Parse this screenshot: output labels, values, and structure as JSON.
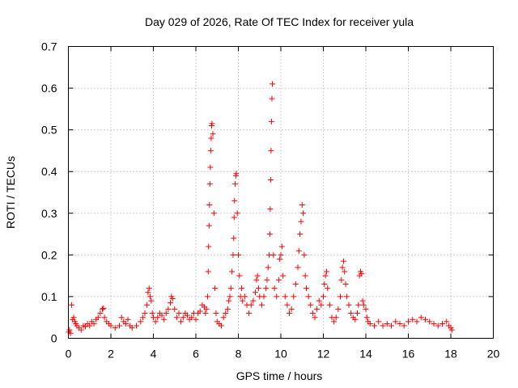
{
  "chart_data": {
    "type": "scatter",
    "title": "Day 029 of 2026, Rate Of TEC Index for receiver yula",
    "xlabel": "GPS time / hours",
    "ylabel": "ROTI / TECUs",
    "xlim": [
      0,
      20
    ],
    "ylim": [
      0,
      0.7
    ],
    "xticks": [
      0,
      2,
      4,
      6,
      8,
      10,
      12,
      14,
      16,
      18,
      20
    ],
    "xtick_labels": [
      "0",
      "2",
      "4",
      "6",
      "8",
      "10",
      "12",
      "14",
      "16",
      "18",
      "20"
    ],
    "yticks": [
      0,
      0.1,
      0.2,
      0.3,
      0.4,
      0.5,
      0.6,
      0.7
    ],
    "ytick_labels": [
      "0",
      "0.1",
      "0.2",
      "0.3",
      "0.4",
      "0.5",
      "0.6",
      "0.7"
    ],
    "grid": true,
    "marker": "+",
    "color": "#ff0000",
    "series": [
      {
        "name": "ROTI",
        "points": [
          [
            0.02,
            0.015
          ],
          [
            0.05,
            0.02
          ],
          [
            0.1,
            0.012
          ],
          [
            0.15,
            0.08
          ],
          [
            0.2,
            0.045
          ],
          [
            0.25,
            0.05
          ],
          [
            0.3,
            0.04
          ],
          [
            0.35,
            0.035
          ],
          [
            0.4,
            0.03
          ],
          [
            0.5,
            0.025
          ],
          [
            0.6,
            0.02
          ],
          [
            0.7,
            0.03
          ],
          [
            0.8,
            0.028
          ],
          [
            0.9,
            0.035
          ],
          [
            1.0,
            0.03
          ],
          [
            1.1,
            0.04
          ],
          [
            1.2,
            0.035
          ],
          [
            1.3,
            0.045
          ],
          [
            1.4,
            0.05
          ],
          [
            1.5,
            0.06
          ],
          [
            1.6,
            0.07
          ],
          [
            1.65,
            0.072
          ],
          [
            1.7,
            0.05
          ],
          [
            1.8,
            0.04
          ],
          [
            1.9,
            0.035
          ],
          [
            2.0,
            0.03
          ],
          [
            2.2,
            0.025
          ],
          [
            2.4,
            0.03
          ],
          [
            2.5,
            0.05
          ],
          [
            2.6,
            0.04
          ],
          [
            2.7,
            0.035
          ],
          [
            2.8,
            0.045
          ],
          [
            2.9,
            0.03
          ],
          [
            3.0,
            0.025
          ],
          [
            3.2,
            0.03
          ],
          [
            3.4,
            0.04
          ],
          [
            3.5,
            0.05
          ],
          [
            3.6,
            0.06
          ],
          [
            3.7,
            0.08
          ],
          [
            3.75,
            0.11
          ],
          [
            3.8,
            0.12
          ],
          [
            3.85,
            0.1
          ],
          [
            3.9,
            0.09
          ],
          [
            3.95,
            0.06
          ],
          [
            4.0,
            0.05
          ],
          [
            4.1,
            0.04
          ],
          [
            4.2,
            0.05
          ],
          [
            4.3,
            0.06
          ],
          [
            4.4,
            0.055
          ],
          [
            4.5,
            0.045
          ],
          [
            4.6,
            0.06
          ],
          [
            4.7,
            0.07
          ],
          [
            4.8,
            0.085
          ],
          [
            4.85,
            0.1
          ],
          [
            4.9,
            0.095
          ],
          [
            5.0,
            0.07
          ],
          [
            5.1,
            0.05
          ],
          [
            5.2,
            0.06
          ],
          [
            5.3,
            0.04
          ],
          [
            5.4,
            0.05
          ],
          [
            5.5,
            0.06
          ],
          [
            5.6,
            0.055
          ],
          [
            5.7,
            0.045
          ],
          [
            5.8,
            0.05
          ],
          [
            5.9,
            0.06
          ],
          [
            6.0,
            0.045
          ],
          [
            6.1,
            0.06
          ],
          [
            6.2,
            0.065
          ],
          [
            6.3,
            0.08
          ],
          [
            6.4,
            0.075
          ],
          [
            6.45,
            0.06
          ],
          [
            6.5,
            0.07
          ],
          [
            6.55,
            0.1
          ],
          [
            6.58,
            0.16
          ],
          [
            6.6,
            0.22
          ],
          [
            6.62,
            0.27
          ],
          [
            6.64,
            0.32
          ],
          [
            6.66,
            0.37
          ],
          [
            6.68,
            0.41
          ],
          [
            6.7,
            0.45
          ],
          [
            6.72,
            0.48
          ],
          [
            6.74,
            0.51
          ],
          [
            6.76,
            0.515
          ],
          [
            6.8,
            0.49
          ],
          [
            6.85,
            0.3
          ],
          [
            6.9,
            0.12
          ],
          [
            6.95,
            0.06
          ],
          [
            7.0,
            0.04
          ],
          [
            7.1,
            0.035
          ],
          [
            7.2,
            0.03
          ],
          [
            7.3,
            0.05
          ],
          [
            7.4,
            0.06
          ],
          [
            7.5,
            0.07
          ],
          [
            7.55,
            0.09
          ],
          [
            7.6,
            0.1
          ],
          [
            7.65,
            0.12
          ],
          [
            7.7,
            0.16
          ],
          [
            7.75,
            0.2
          ],
          [
            7.78,
            0.24
          ],
          [
            7.8,
            0.29
          ],
          [
            7.82,
            0.33
          ],
          [
            7.85,
            0.37
          ],
          [
            7.88,
            0.39
          ],
          [
            7.9,
            0.395
          ],
          [
            7.95,
            0.3
          ],
          [
            8.0,
            0.2
          ],
          [
            8.05,
            0.15
          ],
          [
            8.1,
            0.1
          ],
          [
            8.15,
            0.12
          ],
          [
            8.2,
            0.09
          ],
          [
            8.3,
            0.1
          ],
          [
            8.4,
            0.08
          ],
          [
            8.5,
            0.06
          ],
          [
            8.6,
            0.08
          ],
          [
            8.7,
            0.09
          ],
          [
            8.8,
            0.11
          ],
          [
            8.85,
            0.14
          ],
          [
            8.9,
            0.15
          ],
          [
            8.95,
            0.12
          ],
          [
            9.0,
            0.1
          ],
          [
            9.1,
            0.08
          ],
          [
            9.2,
            0.1
          ],
          [
            9.3,
            0.12
          ],
          [
            9.35,
            0.14
          ],
          [
            9.4,
            0.17
          ],
          [
            9.45,
            0.2
          ],
          [
            9.48,
            0.25
          ],
          [
            9.5,
            0.31
          ],
          [
            9.52,
            0.38
          ],
          [
            9.54,
            0.45
          ],
          [
            9.56,
            0.52
          ],
          [
            9.58,
            0.575
          ],
          [
            9.6,
            0.61
          ],
          [
            9.65,
            0.2
          ],
          [
            9.7,
            0.12
          ],
          [
            9.8,
            0.1
          ],
          [
            9.9,
            0.14
          ],
          [
            9.95,
            0.19
          ],
          [
            10.0,
            0.2
          ],
          [
            10.05,
            0.22
          ],
          [
            10.1,
            0.15
          ],
          [
            10.2,
            0.1
          ],
          [
            10.3,
            0.08
          ],
          [
            10.4,
            0.06
          ],
          [
            10.5,
            0.07
          ],
          [
            10.6,
            0.1
          ],
          [
            10.7,
            0.13
          ],
          [
            10.8,
            0.17
          ],
          [
            10.85,
            0.21
          ],
          [
            10.9,
            0.25
          ],
          [
            10.95,
            0.28
          ],
          [
            11.0,
            0.32
          ],
          [
            11.05,
            0.3
          ],
          [
            11.1,
            0.2
          ],
          [
            11.15,
            0.15
          ],
          [
            11.2,
            0.12
          ],
          [
            11.3,
            0.1
          ],
          [
            11.4,
            0.08
          ],
          [
            11.5,
            0.06
          ],
          [
            11.6,
            0.05
          ],
          [
            11.7,
            0.07
          ],
          [
            11.8,
            0.09
          ],
          [
            11.9,
            0.08
          ],
          [
            12.0,
            0.1
          ],
          [
            12.05,
            0.13
          ],
          [
            12.1,
            0.15
          ],
          [
            12.15,
            0.16
          ],
          [
            12.2,
            0.12
          ],
          [
            12.3,
            0.08
          ],
          [
            12.4,
            0.05
          ],
          [
            12.5,
            0.04
          ],
          [
            12.6,
            0.05
          ],
          [
            12.7,
            0.07
          ],
          [
            12.8,
            0.1
          ],
          [
            12.85,
            0.14
          ],
          [
            12.9,
            0.17
          ],
          [
            12.95,
            0.185
          ],
          [
            13.0,
            0.16
          ],
          [
            13.05,
            0.13
          ],
          [
            13.1,
            0.1
          ],
          [
            13.2,
            0.08
          ],
          [
            13.3,
            0.06
          ],
          [
            13.4,
            0.05
          ],
          [
            13.5,
            0.045
          ],
          [
            13.6,
            0.06
          ],
          [
            13.65,
            0.08
          ],
          [
            13.7,
            0.15
          ],
          [
            13.75,
            0.16
          ],
          [
            13.8,
            0.155
          ],
          [
            13.85,
            0.09
          ],
          [
            13.9,
            0.08
          ],
          [
            14.0,
            0.07
          ],
          [
            14.05,
            0.05
          ],
          [
            14.1,
            0.04
          ],
          [
            14.2,
            0.035
          ],
          [
            14.4,
            0.03
          ],
          [
            14.6,
            0.04
          ],
          [
            14.8,
            0.03
          ],
          [
            15.0,
            0.035
          ],
          [
            15.2,
            0.03
          ],
          [
            15.4,
            0.04
          ],
          [
            15.6,
            0.035
          ],
          [
            15.8,
            0.03
          ],
          [
            16.0,
            0.04
          ],
          [
            16.2,
            0.045
          ],
          [
            16.4,
            0.04
          ],
          [
            16.6,
            0.05
          ],
          [
            16.8,
            0.045
          ],
          [
            17.0,
            0.04
          ],
          [
            17.2,
            0.035
          ],
          [
            17.4,
            0.03
          ],
          [
            17.6,
            0.035
          ],
          [
            17.8,
            0.04
          ],
          [
            17.9,
            0.03
          ],
          [
            18.0,
            0.025
          ],
          [
            18.05,
            0.02
          ]
        ]
      }
    ]
  }
}
